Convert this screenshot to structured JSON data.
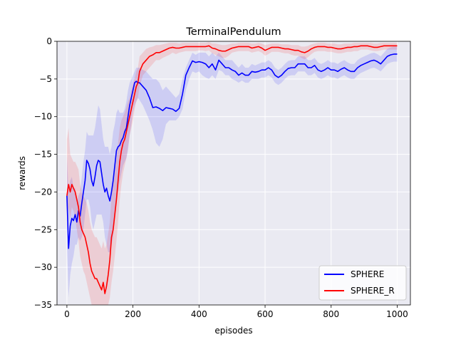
{
  "chart_data": {
    "type": "line",
    "title": "TerminalPendulum",
    "xlabel": "episodes",
    "ylabel": "rewards",
    "xlim": [
      -30,
      1040
    ],
    "ylim": [
      -35,
      0
    ],
    "xticks": [
      0,
      200,
      400,
      600,
      800,
      1000
    ],
    "yticks": [
      0,
      -5,
      -10,
      -15,
      -20,
      -25,
      -30,
      -35
    ],
    "xtick_labels": [
      "0",
      "200",
      "400",
      "600",
      "800",
      "1000"
    ],
    "ytick_labels": [
      "0",
      "−5",
      "−10",
      "−15",
      "−20",
      "−25",
      "−30",
      "−35"
    ],
    "grid": true,
    "legend": "lower-right",
    "series": [
      {
        "name": "SPHERE",
        "color": "#0000ff",
        "x": [
          0,
          5,
          10,
          15,
          20,
          25,
          30,
          35,
          40,
          45,
          50,
          55,
          60,
          65,
          70,
          75,
          80,
          85,
          90,
          95,
          100,
          105,
          110,
          115,
          120,
          125,
          130,
          135,
          140,
          145,
          150,
          155,
          160,
          165,
          170,
          175,
          180,
          185,
          190,
          195,
          200,
          205,
          210,
          215,
          220,
          230,
          240,
          250,
          260,
          270,
          280,
          290,
          300,
          310,
          320,
          330,
          340,
          350,
          360,
          370,
          380,
          390,
          400,
          410,
          420,
          430,
          440,
          450,
          460,
          470,
          480,
          490,
          500,
          510,
          520,
          530,
          540,
          550,
          560,
          570,
          580,
          590,
          600,
          610,
          620,
          630,
          640,
          650,
          660,
          670,
          680,
          690,
          700,
          710,
          720,
          730,
          740,
          750,
          760,
          770,
          780,
          790,
          800,
          810,
          820,
          830,
          840,
          850,
          860,
          870,
          880,
          890,
          900,
          910,
          920,
          930,
          940,
          950,
          960,
          970,
          980,
          990,
          1000
        ],
        "values": [
          -20.5,
          -27.5,
          -24.5,
          -23.5,
          -23.8,
          -23.0,
          -24.0,
          -22.5,
          -23.2,
          -21.5,
          -20.0,
          -18.5,
          -15.8,
          -16.2,
          -17.0,
          -18.5,
          -19.2,
          -18.0,
          -16.5,
          -15.8,
          -16.0,
          -17.5,
          -19.0,
          -20.0,
          -19.5,
          -20.5,
          -21.2,
          -20.0,
          -18.5,
          -16.5,
          -14.5,
          -14.0,
          -13.8,
          -13.2,
          -12.8,
          -12.0,
          -11.5,
          -10.0,
          -8.5,
          -7.5,
          -6.5,
          -5.5,
          -5.3,
          -5.5,
          -5.5,
          -6.0,
          -6.5,
          -7.5,
          -8.8,
          -8.7,
          -8.9,
          -9.2,
          -8.8,
          -8.9,
          -9.0,
          -9.3,
          -8.9,
          -7.0,
          -4.5,
          -3.5,
          -2.6,
          -2.8,
          -2.7,
          -2.8,
          -3.0,
          -3.5,
          -3.0,
          -3.8,
          -2.5,
          -3.0,
          -3.5,
          -3.5,
          -3.8,
          -4.0,
          -4.5,
          -4.2,
          -4.5,
          -4.5,
          -4.0,
          -4.1,
          -4.0,
          -3.8,
          -3.8,
          -3.5,
          -3.8,
          -4.5,
          -4.8,
          -4.5,
          -4.0,
          -3.6,
          -3.5,
          -3.5,
          -3.0,
          -3.0,
          -3.0,
          -3.5,
          -3.5,
          -3.2,
          -3.8,
          -4.0,
          -3.8,
          -3.5,
          -3.8,
          -3.8,
          -4.0,
          -3.7,
          -3.5,
          -3.8,
          -4.0,
          -4.0,
          -3.5,
          -3.2,
          -3.0,
          -2.8,
          -2.6,
          -2.5,
          -2.7,
          -3.0,
          -2.5,
          -2.0,
          -1.8,
          -1.7,
          -1.7
        ],
        "lower": [
          -27.0,
          -34.0,
          -31.0,
          -29.5,
          -28.5,
          -27.0,
          -27.0,
          -26.0,
          -26.5,
          -26.0,
          -25.0,
          -23.0,
          -21.0,
          -21.0,
          -22.0,
          -24.0,
          -25.0,
          -24.0,
          -23.0,
          -23.0,
          -23.0,
          -23.0,
          -24.0,
          -26.0,
          -27.0,
          -28.0,
          -28.0,
          -27.0,
          -26.0,
          -23.0,
          -21.0,
          -20.0,
          -18.5,
          -17.5,
          -16.5,
          -16.0,
          -15.5,
          -14.5,
          -12.5,
          -11.0,
          -9.5,
          -8.5,
          -8.0,
          -7.5,
          -7.8,
          -8.5,
          -9.5,
          -10.5,
          -11.8,
          -13.5,
          -14.0,
          -13.0,
          -11.0,
          -10.5,
          -10.5,
          -10.5,
          -10.0,
          -9.0,
          -6.5,
          -5.0,
          -4.0,
          -4.2,
          -4.0,
          -4.5,
          -4.8,
          -5.0,
          -4.5,
          -5.0,
          -3.8,
          -4.0,
          -4.5,
          -4.5,
          -5.0,
          -5.2,
          -5.5,
          -5.2,
          -5.5,
          -5.5,
          -5.0,
          -5.0,
          -5.0,
          -4.8,
          -4.8,
          -4.5,
          -4.8,
          -5.5,
          -5.8,
          -5.5,
          -5.0,
          -4.6,
          -4.5,
          -4.5,
          -4.0,
          -4.0,
          -4.0,
          -4.5,
          -4.5,
          -4.2,
          -4.8,
          -5.0,
          -4.8,
          -4.5,
          -4.8,
          -4.8,
          -5.0,
          -4.7,
          -4.5,
          -4.8,
          -5.0,
          -5.0,
          -4.5,
          -4.2,
          -4.0,
          -3.8,
          -3.6,
          -3.5,
          -3.7,
          -4.0,
          -3.5,
          -3.0,
          -2.8,
          -2.7,
          -2.7
        ],
        "upper": [
          -15.0,
          -20.0,
          -18.5,
          -18.0,
          -19.5,
          -19.5,
          -21.5,
          -20.5,
          -20.0,
          -18.0,
          -16.0,
          -14.5,
          -12.0,
          -12.5,
          -12.5,
          -12.5,
          -12.5,
          -11.5,
          -10.0,
          -8.5,
          -9.0,
          -11.0,
          -13.0,
          -14.0,
          -14.0,
          -14.0,
          -15.0,
          -14.0,
          -12.0,
          -11.0,
          -9.5,
          -9.0,
          -9.5,
          -9.5,
          -9.5,
          -9.0,
          -8.0,
          -6.5,
          -5.5,
          -5.0,
          -4.5,
          -4.0,
          -3.5,
          -3.5,
          -3.5,
          -3.8,
          -4.0,
          -4.5,
          -5.0,
          -5.0,
          -5.5,
          -6.5,
          -6.0,
          -6.5,
          -7.0,
          -7.5,
          -7.0,
          -5.0,
          -3.5,
          -2.5,
          -1.5,
          -1.8,
          -1.5,
          -1.5,
          -1.5,
          -2.0,
          -1.5,
          -2.0,
          -1.5,
          -2.0,
          -2.5,
          -2.5,
          -2.5,
          -3.0,
          -3.5,
          -3.0,
          -3.5,
          -3.5,
          -3.0,
          -3.2,
          -3.0,
          -2.8,
          -2.8,
          -2.5,
          -2.8,
          -3.5,
          -3.8,
          -3.5,
          -3.0,
          -2.6,
          -2.5,
          -2.5,
          -2.0,
          -2.0,
          -2.0,
          -2.5,
          -2.5,
          -2.2,
          -2.8,
          -3.0,
          -2.8,
          -2.5,
          -2.8,
          -2.8,
          -3.0,
          -2.7,
          -2.5,
          -2.8,
          -3.0,
          -3.0,
          -2.5,
          -2.2,
          -2.0,
          -1.8,
          -1.6,
          -1.5,
          -1.7,
          -2.0,
          -1.5,
          -1.0,
          -0.8,
          -0.7,
          -0.7
        ]
      },
      {
        "name": "SPHERE_R",
        "color": "#ff0000",
        "x": [
          0,
          5,
          10,
          15,
          20,
          25,
          30,
          35,
          40,
          45,
          50,
          55,
          60,
          65,
          70,
          75,
          80,
          85,
          90,
          95,
          100,
          105,
          110,
          115,
          120,
          125,
          130,
          135,
          140,
          145,
          150,
          155,
          160,
          165,
          170,
          175,
          180,
          185,
          190,
          195,
          200,
          205,
          210,
          215,
          220,
          230,
          240,
          250,
          260,
          270,
          280,
          290,
          300,
          310,
          320,
          330,
          340,
          350,
          360,
          370,
          380,
          390,
          400,
          410,
          420,
          430,
          440,
          450,
          460,
          470,
          480,
          490,
          500,
          510,
          520,
          530,
          540,
          550,
          560,
          570,
          580,
          590,
          600,
          610,
          620,
          630,
          640,
          650,
          660,
          670,
          680,
          690,
          700,
          710,
          720,
          730,
          740,
          750,
          760,
          770,
          780,
          790,
          800,
          810,
          820,
          830,
          840,
          850,
          860,
          870,
          880,
          890,
          900,
          910,
          920,
          930,
          940,
          950,
          960,
          970,
          980,
          990,
          1000
        ],
        "values": [
          -20.5,
          -19.0,
          -20.0,
          -19.0,
          -19.5,
          -20.0,
          -21.0,
          -22.0,
          -24.0,
          -25.0,
          -25.5,
          -26.0,
          -27.0,
          -28.0,
          -29.5,
          -30.5,
          -31.0,
          -31.5,
          -31.5,
          -32.0,
          -32.5,
          -33.0,
          -32.0,
          -33.5,
          -32.5,
          -31.0,
          -29.0,
          -26.0,
          -25.0,
          -23.0,
          -21.0,
          -18.5,
          -16.0,
          -14.5,
          -13.5,
          -13.0,
          -12.0,
          -11.0,
          -10.0,
          -9.0,
          -8.0,
          -7.0,
          -6.0,
          -5.5,
          -4.0,
          -3.0,
          -2.5,
          -2.0,
          -1.8,
          -1.5,
          -1.5,
          -1.3,
          -1.1,
          -0.9,
          -0.8,
          -0.9,
          -0.9,
          -0.8,
          -0.7,
          -0.7,
          -0.7,
          -0.7,
          -0.7,
          -0.7,
          -0.7,
          -0.6,
          -0.9,
          -1.0,
          -1.2,
          -1.3,
          -1.3,
          -1.1,
          -0.9,
          -0.8,
          -0.7,
          -0.7,
          -0.7,
          -0.7,
          -0.9,
          -0.8,
          -0.7,
          -0.9,
          -1.2,
          -1.0,
          -0.8,
          -0.8,
          -0.8,
          -0.9,
          -1.0,
          -1.0,
          -1.1,
          -1.2,
          -1.2,
          -1.4,
          -1.5,
          -1.3,
          -1.0,
          -0.8,
          -0.7,
          -0.7,
          -0.7,
          -0.8,
          -0.8,
          -0.9,
          -1.0,
          -1.0,
          -0.9,
          -0.8,
          -0.8,
          -0.7,
          -0.7,
          -0.6,
          -0.6,
          -0.6,
          -0.7,
          -0.8,
          -0.8,
          -0.7,
          -0.6,
          -0.6,
          -0.6,
          -0.6,
          -0.6
        ],
        "lower": [
          -24.0,
          -22.0,
          -23.5,
          -22.0,
          -22.5,
          -23.5,
          -25.0,
          -26.5,
          -28.5,
          -29.5,
          -30.5,
          -31.0,
          -32.0,
          -33.0,
          -34.0,
          -35.0,
          -35.0,
          -35.0,
          -35.0,
          -35.0,
          -35.0,
          -35.0,
          -35.0,
          -35.0,
          -35.0,
          -35.0,
          -34.0,
          -32.0,
          -30.5,
          -28.5,
          -26.5,
          -24.0,
          -21.0,
          -19.0,
          -17.5,
          -16.5,
          -15.5,
          -14.0,
          -12.5,
          -11.5,
          -10.5,
          -9.0,
          -8.0,
          -7.5,
          -6.0,
          -4.5,
          -4.0,
          -3.5,
          -3.0,
          -2.5,
          -2.5,
          -2.2,
          -2.0,
          -1.8,
          -1.5,
          -1.7,
          -1.5,
          -1.4,
          -1.3,
          -1.3,
          -1.3,
          -1.3,
          -1.2,
          -1.2,
          -1.3,
          -1.2,
          -1.6,
          -1.8,
          -2.0,
          -2.2,
          -2.2,
          -1.9,
          -1.5,
          -1.4,
          -1.3,
          -1.3,
          -1.3,
          -1.3,
          -1.5,
          -1.4,
          -1.3,
          -1.5,
          -1.9,
          -1.7,
          -1.4,
          -1.4,
          -1.4,
          -1.5,
          -1.6,
          -1.6,
          -1.8,
          -1.9,
          -1.9,
          -2.2,
          -2.4,
          -2.1,
          -1.7,
          -1.4,
          -1.3,
          -1.3,
          -1.3,
          -1.4,
          -1.4,
          -1.5,
          -1.6,
          -1.6,
          -1.5,
          -1.4,
          -1.4,
          -1.3,
          -1.3,
          -1.1,
          -1.1,
          -1.1,
          -1.2,
          -1.3,
          -1.3,
          -1.2,
          -1.1,
          -1.1,
          -1.1,
          -1.1,
          -1.1
        ],
        "upper": [
          -13.0,
          -11.5,
          -15.0,
          -15.5,
          -16.0,
          -16.0,
          -16.5,
          -17.0,
          -19.0,
          -20.0,
          -20.5,
          -21.0,
          -21.5,
          -22.5,
          -24.0,
          -25.0,
          -25.5,
          -26.0,
          -26.0,
          -26.5,
          -27.0,
          -27.5,
          -26.5,
          -27.5,
          -27.0,
          -25.5,
          -24.0,
          -20.5,
          -19.0,
          -17.5,
          -15.5,
          -13.5,
          -11.5,
          -10.5,
          -10.0,
          -9.5,
          -8.8,
          -8.0,
          -7.5,
          -6.5,
          -5.5,
          -5.0,
          -4.0,
          -3.5,
          -2.0,
          -1.5,
          -1.0,
          -0.8,
          -0.7,
          -0.5,
          -0.5,
          -0.4,
          -0.3,
          -0.2,
          -0.2,
          -0.2,
          -0.3,
          -0.2,
          -0.2,
          -0.2,
          -0.2,
          -0.2,
          -0.2,
          -0.2,
          -0.2,
          -0.1,
          -0.3,
          -0.3,
          -0.4,
          -0.5,
          -0.5,
          -0.4,
          -0.3,
          -0.3,
          -0.2,
          -0.2,
          -0.2,
          -0.2,
          -0.3,
          -0.3,
          -0.2,
          -0.3,
          -0.5,
          -0.4,
          -0.3,
          -0.3,
          -0.3,
          -0.4,
          -0.4,
          -0.4,
          -0.5,
          -0.5,
          -0.5,
          -0.7,
          -0.7,
          -0.6,
          -0.4,
          -0.3,
          -0.2,
          -0.2,
          -0.2,
          -0.3,
          -0.3,
          -0.3,
          -0.4,
          -0.4,
          -0.3,
          -0.3,
          -0.3,
          -0.2,
          -0.2,
          -0.2,
          -0.2,
          -0.2,
          -0.2,
          -0.3,
          -0.3,
          -0.2,
          -0.2,
          -0.2,
          -0.2,
          -0.2,
          -0.2
        ]
      }
    ]
  },
  "colors": {
    "plot_background": "#eaeaf2",
    "grid": "#ffffff"
  }
}
